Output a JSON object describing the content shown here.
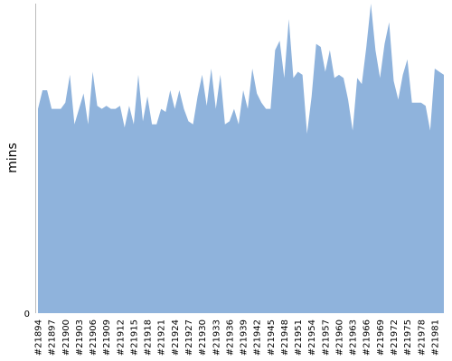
{
  "chart_data": {
    "type": "area",
    "ylabel": "mins",
    "ylim": [
      0,
      100
    ],
    "y_ticks": [
      0
    ],
    "grid": false,
    "legend": "none",
    "x_tick_labels": [
      "#21894",
      "#21897",
      "#21900",
      "#21903",
      "#21906",
      "#21909",
      "#21912",
      "#21915",
      "#21918",
      "#21921",
      "#21924",
      "#21927",
      "#21930",
      "#21933",
      "#21936",
      "#21939",
      "#21942",
      "#21945",
      "#21948",
      "#21951",
      "#21954",
      "#21957",
      "#21960",
      "#21963",
      "#21966",
      "#21969",
      "#21972",
      "#21975",
      "#21978",
      "#21981"
    ],
    "x_start": 21894,
    "series": [
      {
        "color": "#8fb3dc",
        "values": [
          66,
          72,
          72,
          66,
          66,
          66,
          68,
          77,
          61,
          66,
          71,
          61,
          78,
          67,
          66,
          67,
          66,
          66,
          67,
          60,
          67,
          61,
          77,
          62,
          70,
          61,
          61,
          66,
          65,
          72,
          66,
          72,
          66,
          62,
          61,
          70,
          77,
          67,
          79,
          66,
          77,
          61,
          62,
          66,
          61,
          72,
          66,
          79,
          71,
          68,
          66,
          66,
          85,
          88,
          76,
          95,
          76,
          78,
          77,
          58,
          70,
          87,
          86,
          78,
          85,
          76,
          77,
          76,
          69,
          59,
          76,
          74,
          86,
          100,
          85,
          76,
          87,
          94,
          75,
          69,
          77,
          82,
          68,
          68,
          68,
          67,
          59,
          79,
          78,
          77
        ]
      }
    ]
  }
}
